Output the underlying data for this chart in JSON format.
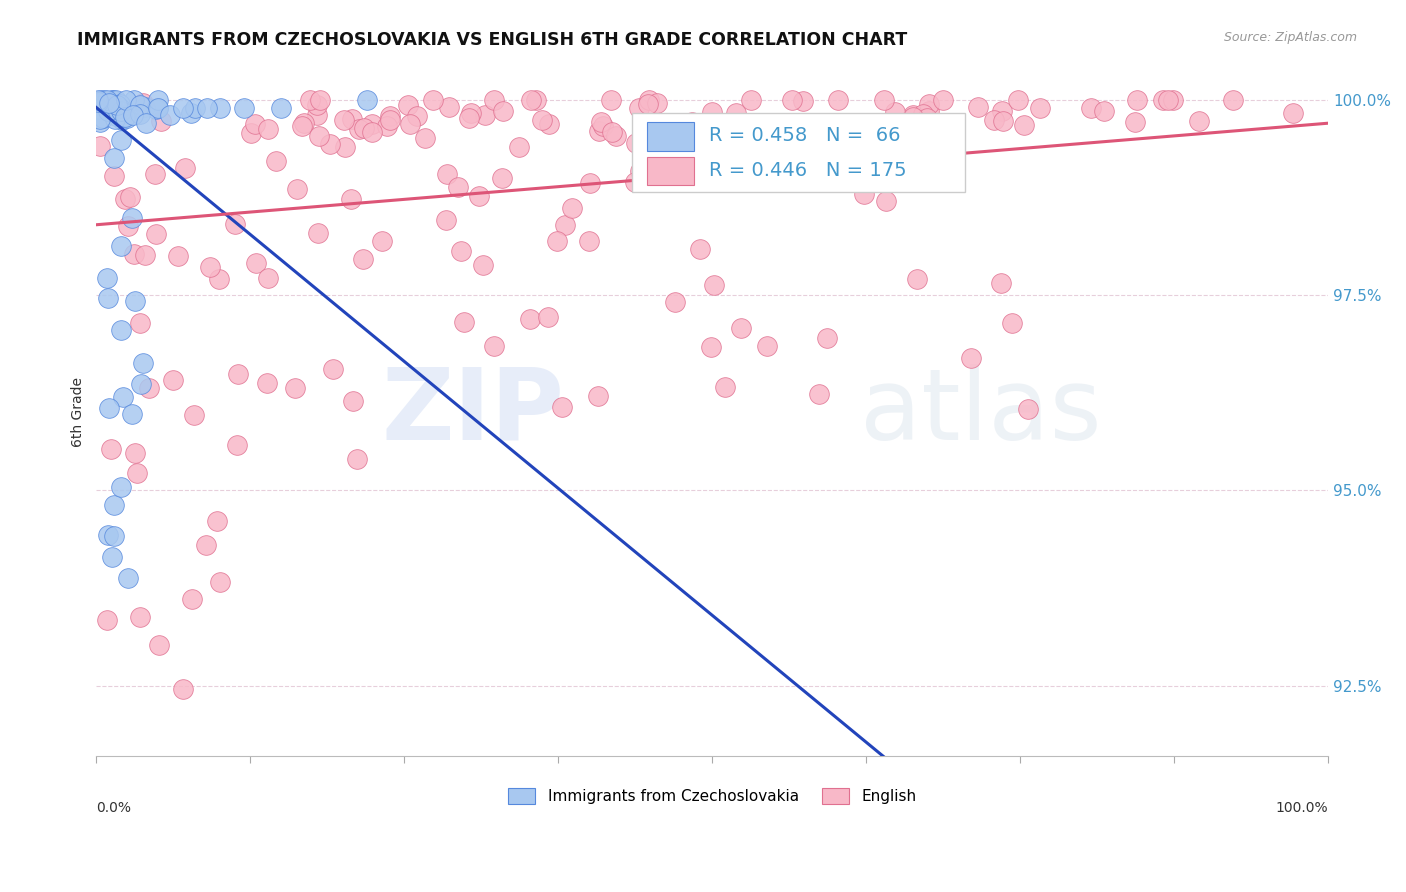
{
  "title": "IMMIGRANTS FROM CZECHOSLOVAKIA VS ENGLISH 6TH GRADE CORRELATION CHART",
  "source": "Source: ZipAtlas.com",
  "ylabel": "6th Grade",
  "xlim": [
    0.0,
    1.0
  ],
  "ylim": [
    0.916,
    1.004
  ],
  "yticks": [
    0.925,
    0.95,
    0.975,
    1.0
  ],
  "ytick_labels": [
    "92.5%",
    "95.0%",
    "97.5%",
    "100.0%"
  ],
  "xtick_positions": [
    0.0,
    0.125,
    0.25,
    0.375,
    0.5,
    0.625,
    0.75,
    0.875,
    1.0
  ],
  "blue_color": "#a8c8f0",
  "pink_color": "#f8b8c8",
  "blue_edge_color": "#5588dd",
  "pink_edge_color": "#e07090",
  "blue_line_color": "#2244bb",
  "pink_line_color": "#dd5577",
  "legend_blue_r": "0.458",
  "legend_blue_n": "66",
  "legend_pink_r": "0.446",
  "legend_pink_n": "175",
  "legend_label_blue": "Immigrants from Czechoslovakia",
  "legend_label_pink": "English",
  "watermark_zip": "ZIP",
  "watermark_atlas": "atlas",
  "grid_color": "#ddbbcc",
  "tick_color": "#4499cc"
}
